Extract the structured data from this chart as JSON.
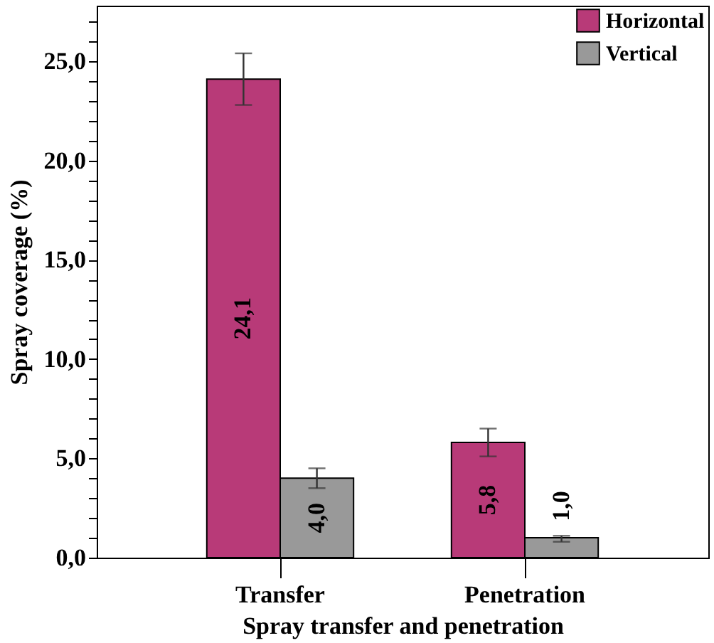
{
  "chart_data": {
    "type": "bar",
    "xlabel": "Spray transfer and penetration",
    "ylabel": "Spray coverage (%)",
    "categories": [
      "Transfer",
      "Penetration"
    ],
    "series": [
      {
        "name": "Horizontal",
        "color": "#b83a78",
        "values": [
          24.1,
          5.8
        ],
        "errors": [
          [
            22.8,
            25.4
          ],
          [
            5.1,
            6.5
          ]
        ],
        "value_labels": [
          "24,1",
          "5,8"
        ]
      },
      {
        "name": "Vertical",
        "color": "#999999",
        "values": [
          4.0,
          1.0
        ],
        "errors": [
          [
            3.5,
            4.5
          ],
          [
            0.8,
            1.1
          ]
        ],
        "value_labels": [
          "4,0",
          "1,0"
        ]
      }
    ],
    "ylim": [
      0,
      27.8
    ],
    "yticks": [
      {
        "value": 0,
        "label": "0,0"
      },
      {
        "value": 1,
        "label": null
      },
      {
        "value": 2,
        "label": null
      },
      {
        "value": 3,
        "label": null
      },
      {
        "value": 4,
        "label": null
      },
      {
        "value": 5,
        "label": "5,0"
      },
      {
        "value": 6,
        "label": null
      },
      {
        "value": 7,
        "label": null
      },
      {
        "value": 8,
        "label": null
      },
      {
        "value": 9,
        "label": null
      },
      {
        "value": 10,
        "label": "10,0"
      },
      {
        "value": 11,
        "label": null
      },
      {
        "value": 12,
        "label": null
      },
      {
        "value": 13,
        "label": null
      },
      {
        "value": 14,
        "label": null
      },
      {
        "value": 15,
        "label": "15,0"
      },
      {
        "value": 16,
        "label": null
      },
      {
        "value": 17,
        "label": null
      },
      {
        "value": 18,
        "label": null
      },
      {
        "value": 19,
        "label": null
      },
      {
        "value": 20,
        "label": "20,0"
      },
      {
        "value": 21,
        "label": null
      },
      {
        "value": 22,
        "label": null
      },
      {
        "value": 23,
        "label": null
      },
      {
        "value": 24,
        "label": null
      },
      {
        "value": 25,
        "label": "25,0"
      },
      {
        "value": 26,
        "label": null
      },
      {
        "value": 27,
        "label": null
      }
    ],
    "grid": false,
    "legend": "top right"
  }
}
